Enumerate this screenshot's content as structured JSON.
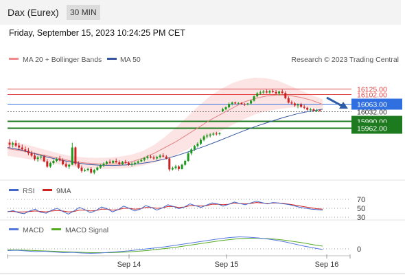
{
  "header": {
    "title": "Dax (Eurex)",
    "timeframe": "30 MIN"
  },
  "timestamp": "Friday, September 15, 2023 10:24:25 PM CET",
  "legend": {
    "ma20_bb": "MA 20 + Bollinger Bands",
    "ma50": "MA 50",
    "credit": "Research © 2023 Trading Central"
  },
  "rsi_legend": {
    "rsi": "RSI",
    "ma": "9MA"
  },
  "macd_legend": {
    "macd": "MACD",
    "signal": "MACD Signal"
  },
  "colors": {
    "bull": "#1a9a1a",
    "bear": "#cc2222",
    "resistance": "#e04444",
    "support": "#1e7a1e",
    "pivot": "#2f6fe0",
    "ma20": "#e08080",
    "ma50": "#3355a0",
    "band": "#fde4e4",
    "rsi": "#4466cc",
    "rsi_ma": "#cc2222",
    "macd": "#5577dd",
    "signal": "#55aa22"
  },
  "chart_data": {
    "type": "candlestick",
    "price_range": [
      15755,
      16215
    ],
    "x_ticks": [
      "Sep 14",
      "Sep 15",
      "Sep 16"
    ],
    "levels": [
      {
        "value": 16125.0,
        "label": "16125.00",
        "kind": "resistance"
      },
      {
        "value": 16102.0,
        "label": "16102.00",
        "kind": "resistance"
      },
      {
        "value": 16063.0,
        "label": "16063.00",
        "kind": "pivot"
      },
      {
        "value": 16032.0,
        "label": "16032.00",
        "kind": "last"
      },
      {
        "value": 15990.0,
        "label": "15990.00",
        "kind": "support"
      },
      {
        "value": 15962.0,
        "label": "15962.00",
        "kind": "support"
      }
    ],
    "candles": [
      [
        15900,
        15915,
        15878,
        15892
      ],
      [
        15892,
        15905,
        15880,
        15898
      ],
      [
        15898,
        15910,
        15882,
        15888
      ],
      [
        15888,
        15900,
        15870,
        15880
      ],
      [
        15880,
        15892,
        15868,
        15872
      ],
      [
        15872,
        15884,
        15860,
        15866
      ],
      [
        15866,
        15878,
        15848,
        15856
      ],
      [
        15856,
        15866,
        15840,
        15846
      ],
      [
        15846,
        15858,
        15825,
        15832
      ],
      [
        15832,
        15845,
        15820,
        15838
      ],
      [
        15838,
        15850,
        15830,
        15842
      ],
      [
        15842,
        15850,
        15818,
        15822
      ],
      [
        15822,
        15832,
        15795,
        15800
      ],
      [
        15800,
        15820,
        15795,
        15815
      ],
      [
        15815,
        15830,
        15808,
        15824
      ],
      [
        15824,
        15838,
        15818,
        15832
      ],
      [
        15832,
        15845,
        15822,
        15826
      ],
      [
        15826,
        15835,
        15805,
        15810
      ],
      [
        15810,
        15820,
        15795,
        15800
      ],
      [
        15800,
        15812,
        15790,
        15808
      ],
      [
        15808,
        15900,
        15806,
        15880
      ],
      [
        15880,
        15884,
        15805,
        15812
      ],
      [
        15812,
        15822,
        15790,
        15796
      ],
      [
        15796,
        15805,
        15775,
        15782
      ],
      [
        15782,
        15792,
        15778,
        15786
      ],
      [
        15786,
        15796,
        15780,
        15790
      ],
      [
        15790,
        15798,
        15770,
        15775
      ],
      [
        15775,
        15790,
        15768,
        15786
      ],
      [
        15786,
        15800,
        15782,
        15796
      ],
      [
        15796,
        15810,
        15790,
        15805
      ],
      [
        15805,
        15818,
        15798,
        15812
      ],
      [
        15812,
        15825,
        15808,
        15820
      ],
      [
        15820,
        15830,
        15812,
        15816
      ],
      [
        15816,
        15828,
        15812,
        15824
      ],
      [
        15824,
        15834,
        15814,
        15818
      ],
      [
        15818,
        15826,
        15805,
        15810
      ],
      [
        15810,
        15824,
        15806,
        15820
      ],
      [
        15820,
        15828,
        15812,
        15816
      ],
      [
        15816,
        15822,
        15804,
        15808
      ],
      [
        15808,
        15820,
        15800,
        15812
      ],
      [
        15812,
        15822,
        15805,
        15816
      ],
      [
        15816,
        15826,
        15810,
        15822
      ],
      [
        15822,
        15834,
        15818,
        15828
      ],
      [
        15828,
        15840,
        15822,
        15836
      ],
      [
        15836,
        15848,
        15830,
        15842
      ],
      [
        15842,
        15850,
        15834,
        15838
      ],
      [
        15838,
        15846,
        15828,
        15834
      ],
      [
        15834,
        15845,
        15828,
        15840
      ],
      [
        15840,
        15852,
        15834,
        15846
      ],
      [
        15846,
        15856,
        15838,
        15842
      ],
      [
        15842,
        15848,
        15830,
        15834
      ],
      [
        15834,
        15838,
        15780,
        15788
      ],
      [
        15788,
        15800,
        15784,
        15794
      ],
      [
        15794,
        15808,
        15788,
        15800
      ],
      [
        15800,
        15806,
        15782,
        15790
      ],
      [
        15790,
        15812,
        15788,
        15808
      ],
      [
        15808,
        15828,
        15804,
        15824
      ],
      [
        15824,
        15860,
        15820,
        15855
      ],
      [
        15855,
        15878,
        15848,
        15872
      ],
      [
        15872,
        15890,
        15866,
        15886
      ],
      [
        15886,
        15902,
        15880,
        15896
      ],
      [
        15896,
        15918,
        15890,
        15912
      ],
      [
        15912,
        15932,
        15906,
        15926
      ],
      [
        15926,
        15938,
        15918,
        15930
      ],
      [
        15930,
        15940,
        15922,
        15934
      ],
      [
        15934,
        15944,
        15928,
        15938
      ],
      [
        15938,
        15946,
        15930,
        15936
      ],
      [
        15936,
        15944,
        15930,
        15940
      ],
      [
        16032,
        16046,
        16030,
        16040
      ],
      [
        16040,
        16052,
        16036,
        16048
      ],
      [
        16048,
        16068,
        16044,
        16062
      ],
      [
        16062,
        16072,
        16056,
        16068
      ],
      [
        16068,
        16072,
        16060,
        16064
      ],
      [
        16064,
        16070,
        16060,
        16066
      ],
      [
        16066,
        16070,
        16058,
        16062
      ],
      [
        16062,
        16066,
        16054,
        16060
      ],
      [
        16060,
        16066,
        16056,
        16064
      ],
      [
        16064,
        16080,
        16060,
        16076
      ],
      [
        16076,
        16098,
        16072,
        16094
      ],
      [
        16094,
        16112,
        16090,
        16106
      ],
      [
        16106,
        16118,
        16100,
        16110
      ],
      [
        16110,
        16120,
        16104,
        16114
      ],
      [
        16114,
        16122,
        16106,
        16110
      ],
      [
        16110,
        16120,
        16104,
        16116
      ],
      [
        16116,
        16124,
        16108,
        16112
      ],
      [
        16112,
        16120,
        16100,
        16106
      ],
      [
        16106,
        16118,
        16098,
        16114
      ],
      [
        16114,
        16122,
        16104,
        16108
      ],
      [
        16108,
        16116,
        16082,
        16086
      ],
      [
        16086,
        16094,
        16064,
        16068
      ],
      [
        16068,
        16076,
        16058,
        16064
      ],
      [
        16064,
        16070,
        16050,
        16056
      ],
      [
        16056,
        16064,
        16044,
        16060
      ],
      [
        16060,
        16066,
        16046,
        16050
      ],
      [
        16050,
        16058,
        16040,
        16046
      ],
      [
        16046,
        16050,
        16034,
        16038
      ],
      [
        16038,
        16046,
        16030,
        16040
      ],
      [
        16040,
        16044,
        16030,
        16034
      ],
      [
        16034,
        16042,
        16028,
        16036
      ],
      [
        16036,
        16040,
        16030,
        16032
      ]
    ],
    "ma20": [
      15875,
      15868,
      15860,
      15850,
      15840,
      15830,
      15820,
      15815,
      15812,
      15810,
      15812,
      15820,
      15835,
      15855,
      15880,
      15905,
      15935,
      15965,
      15995,
      16020,
      16045,
      16070,
      16085,
      16095,
      16100,
      16098,
      16090,
      16078,
      16060
    ],
    "ma50": [
      15880,
      15870,
      15855,
      15840,
      15828,
      15818,
      15810,
      15806,
      15805,
      15807,
      15812,
      15820,
      15832,
      15848,
      15866,
      15885,
      15906,
      15928,
      15950,
      15970,
      15988,
      16005,
      16020,
      16032,
      16040
    ],
    "bb_upper": [
      15905,
      15898,
      15888,
      15875,
      15862,
      15850,
      15842,
      15838,
      15836,
      15838,
      15842,
      15850,
      15865,
      15890,
      15925,
      15965,
      16010,
      16055,
      16095,
      16125,
      16150,
      16165,
      16172,
      16170,
      16160,
      16140,
      16120,
      16100,
      16082
    ],
    "bb_lower": [
      15845,
      15838,
      15830,
      15822,
      15814,
      15806,
      15798,
      15792,
      15790,
      15790,
      15792,
      15796,
      15804,
      15816,
      15832,
      15850,
      15872,
      15898,
      15925,
      15950,
      15975,
      15998,
      16018,
      16032,
      16040,
      16046,
      16048,
      16046,
      16040
    ],
    "rsi_ticks": [
      "70",
      "50",
      "30"
    ],
    "rsi": [
      42,
      45,
      40,
      38,
      44,
      48,
      41,
      39,
      46,
      50,
      43,
      37,
      44,
      52,
      47,
      40,
      45,
      53,
      49,
      42,
      47,
      55,
      50,
      44,
      48,
      56,
      52,
      46,
      51,
      58,
      54,
      49,
      53,
      60,
      56,
      52,
      57,
      62,
      60,
      55,
      59,
      64,
      61,
      58,
      62,
      66,
      63,
      60,
      63,
      62,
      60,
      58,
      55,
      52,
      50,
      48,
      47,
      46
    ],
    "rsi_ma": [
      43,
      43,
      42,
      42,
      43,
      44,
      43,
      42,
      44,
      45,
      44,
      42,
      43,
      46,
      46,
      44,
      45,
      48,
      48,
      46,
      47,
      50,
      50,
      48,
      49,
      52,
      52,
      50,
      51,
      54,
      54,
      52,
      53,
      56,
      56,
      55,
      56,
      59,
      59,
      58,
      59,
      62,
      61,
      60,
      61,
      63,
      62,
      61,
      62,
      62,
      61,
      59,
      57,
      55,
      53,
      51,
      49,
      48
    ],
    "macd_ticks": [
      "0"
    ],
    "macd": [
      -5,
      -4,
      -6,
      -8,
      -7,
      -9,
      -11,
      -10,
      -12,
      -13,
      -12,
      -10,
      -8,
      -6,
      -3,
      0,
      3,
      6,
      10,
      14,
      18,
      22,
      26,
      30,
      33,
      35,
      34,
      32,
      29,
      25,
      20,
      14,
      8,
      3,
      -2
    ],
    "macd_signal": [
      -3,
      -3,
      -4,
      -5,
      -6,
      -7,
      -8,
      -9,
      -10,
      -11,
      -11,
      -11,
      -10,
      -9,
      -7,
      -5,
      -2,
      1,
      4,
      8,
      12,
      16,
      20,
      24,
      27,
      30,
      31,
      31,
      30,
      28,
      25,
      21,
      17,
      12,
      8
    ]
  }
}
